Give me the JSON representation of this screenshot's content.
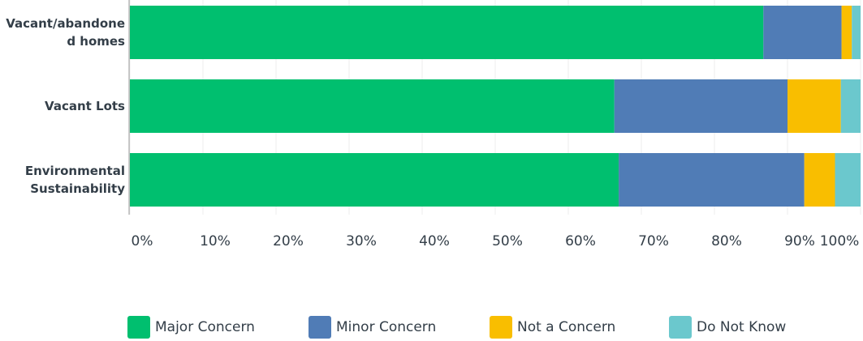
{
  "chart_data": {
    "type": "stacked_bar_horizontal",
    "categories": [
      "Vacant/abandoned homes",
      "Vacant Lots",
      "Environmental Sustainability"
    ],
    "series": [
      {
        "name": "Major Concern",
        "color": "#00bf6f",
        "values": [
          86.7,
          66.3,
          66.9
        ]
      },
      {
        "name": "Minor Concern",
        "color": "#507cb6",
        "values": [
          10.7,
          23.7,
          25.4
        ]
      },
      {
        "name": "Not a Concern",
        "color": "#f9be00",
        "values": [
          1.4,
          7.3,
          4.2
        ]
      },
      {
        "name": "Do Not Know",
        "color": "#6bc8cd",
        "values": [
          1.2,
          2.7,
          3.5
        ]
      }
    ],
    "xlim": [
      0,
      100
    ],
    "xticks": [
      {
        "value": 0,
        "label": "0%"
      },
      {
        "value": 10,
        "label": "10%"
      },
      {
        "value": 20,
        "label": "20%"
      },
      {
        "value": 30,
        "label": "30%"
      },
      {
        "value": 40,
        "label": "40%"
      },
      {
        "value": 50,
        "label": "50%"
      },
      {
        "value": 60,
        "label": "60%"
      },
      {
        "value": 70,
        "label": "70%"
      },
      {
        "value": 80,
        "label": "80%"
      },
      {
        "value": 90,
        "label": "90%"
      },
      {
        "value": 100,
        "label": "100%"
      }
    ],
    "grid": true,
    "legend": "bottom"
  }
}
